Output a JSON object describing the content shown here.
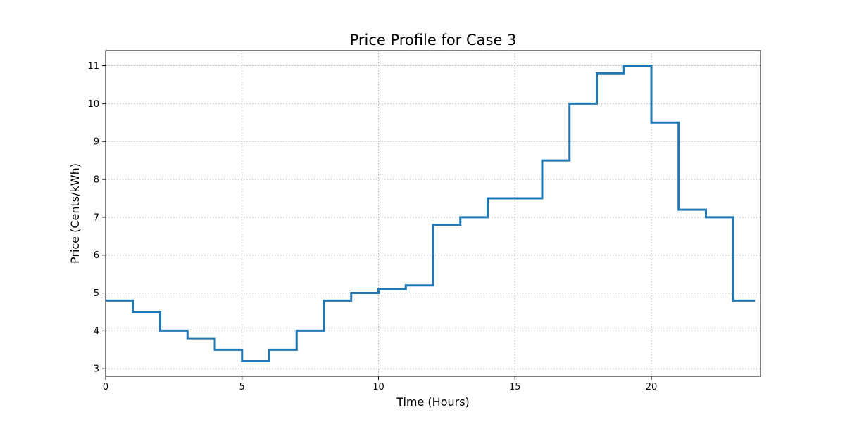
{
  "chart_data": {
    "type": "line",
    "drawstyle": "steps-post",
    "title": "Price Profile for Case 3",
    "xlabel": "Time (Hours)",
    "ylabel": "Price (Cents/kWh)",
    "xlim": [
      0,
      24
    ],
    "ylim": [
      2.8,
      11.4
    ],
    "xticks": [
      0,
      5,
      10,
      15,
      20
    ],
    "yticks": [
      3,
      4,
      5,
      6,
      7,
      8,
      9,
      10,
      11
    ],
    "grid": true,
    "series": [
      {
        "color": "#1f77b4",
        "x": [
          0,
          1,
          2,
          3,
          4,
          5,
          6,
          7,
          8,
          9,
          10,
          11,
          12,
          13,
          14,
          15,
          16,
          17,
          18,
          19,
          20,
          21,
          22,
          23,
          23.8
        ],
        "y": [
          4.8,
          4.5,
          4.0,
          3.8,
          3.5,
          3.2,
          3.5,
          4.0,
          4.8,
          5.0,
          5.1,
          5.2,
          6.8,
          7.0,
          7.5,
          7.5,
          8.5,
          10.0,
          10.8,
          11.0,
          9.5,
          7.2,
          7.0,
          4.8,
          4.8
        ]
      }
    ]
  }
}
